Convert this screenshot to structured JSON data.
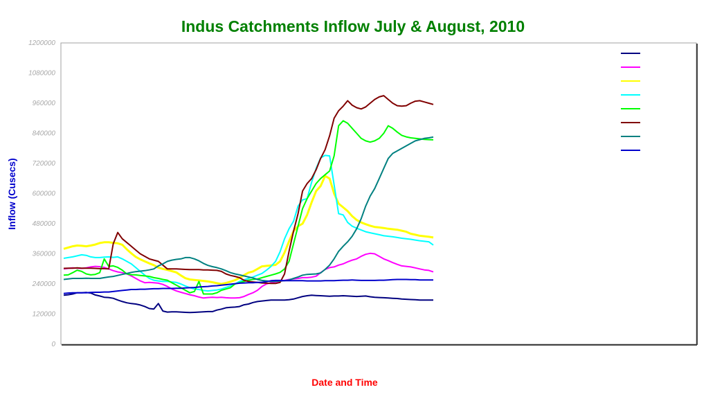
{
  "chart_data": {
    "type": "line",
    "title": "Indus Catchments Inflow July & August, 2010",
    "xlabel": "Date and Time",
    "ylabel": "Inflow (Cusecs)",
    "ylim": [
      0,
      1200000
    ],
    "yticks": [
      0,
      120000,
      240000,
      360000,
      480000,
      600000,
      720000,
      840000,
      960000,
      1080000,
      1200000
    ],
    "ytick_labels": [
      "0",
      "120000",
      "240000",
      "360000",
      "480000",
      "600000",
      "720000",
      "840000",
      "960000",
      "1080000",
      "1200000"
    ],
    "x_count": 83,
    "grid": false,
    "legend": "top-right",
    "series": [
      {
        "color": "#000080",
        "values": [
          195000,
          197000,
          200000,
          205000,
          205000,
          206000,
          204000,
          196000,
          192000,
          187000,
          186000,
          183000,
          176000,
          170000,
          165000,
          162000,
          160000,
          156000,
          150000,
          142000,
          140000,
          162000,
          132000,
          128000,
          129000,
          129000,
          128000,
          127000,
          126000,
          127000,
          128000,
          129000,
          130000,
          130000,
          136000,
          140000,
          145000,
          147000,
          148000,
          150000,
          157000,
          160000,
          166000,
          170000,
          172000,
          174000,
          176000,
          176000,
          176000,
          176000,
          177000,
          180000,
          185000,
          190000,
          193000,
          195000,
          194000,
          193000,
          192000,
          191000,
          192000,
          192000,
          193000,
          192000,
          191000,
          190000,
          191000,
          192000,
          189000,
          187000,
          186000,
          185000,
          184000,
          183000,
          182000,
          180000,
          179000,
          178000,
          177000,
          176000,
          176000,
          176000,
          176000
        ]
      },
      {
        "color": "#ff00ff",
        "values": [
          300000,
          302000,
          304000,
          303000,
          302000,
          304000,
          308000,
          310000,
          309000,
          306000,
          300000,
          293000,
          288000,
          285000,
          280000,
          272000,
          262000,
          252000,
          245000,
          246000,
          245000,
          243000,
          238000,
          230000,
          220000,
          212000,
          207000,
          202000,
          197000,
          193000,
          188000,
          184000,
          186000,
          187000,
          186000,
          187000,
          185000,
          184000,
          184000,
          185000,
          190000,
          198000,
          205000,
          215000,
          230000,
          240000,
          245000,
          248000,
          250000,
          254000,
          258000,
          260000,
          262000,
          265000,
          265000,
          267000,
          271000,
          285000,
          298000,
          305000,
          308000,
          315000,
          320000,
          328000,
          335000,
          340000,
          350000,
          358000,
          362000,
          360000,
          350000,
          340000,
          333000,
          325000,
          318000,
          312000,
          310000,
          308000,
          304000,
          300000,
          296000,
          294000,
          288000
        ]
      },
      {
        "color": "#ffff00",
        "values": [
          380000,
          385000,
          390000,
          393000,
          392000,
          390000,
          393000,
          397000,
          403000,
          406000,
          406000,
          404000,
          402000,
          396000,
          378000,
          362000,
          348000,
          338000,
          330000,
          322000,
          315000,
          305000,
          300000,
          296000,
          291000,
          286000,
          274000,
          263000,
          258000,
          256000,
          254000,
          252000,
          250000,
          247000,
          243000,
          240000,
          244000,
          249000,
          255000,
          264000,
          275000,
          285000,
          290000,
          300000,
          310000,
          312000,
          314000,
          316000,
          330000,
          365000,
          410000,
          450000,
          470000,
          480000,
          515000,
          565000,
          610000,
          630000,
          670000,
          660000,
          600000,
          560000,
          545000,
          530000,
          510000,
          495000,
          485000,
          478000,
          472000,
          467000,
          465000,
          463000,
          460000,
          458000,
          456000,
          452000,
          448000,
          440000,
          436000,
          432000,
          430000,
          428000,
          425000
        ]
      },
      {
        "color": "#00ffff",
        "values": [
          342000,
          345000,
          348000,
          352000,
          356000,
          354000,
          348000,
          345000,
          345000,
          347000,
          348000,
          346000,
          348000,
          340000,
          330000,
          320000,
          305000,
          290000,
          275000,
          262000,
          255000,
          252000,
          250000,
          250000,
          248000,
          246000,
          240000,
          232000,
          225000,
          220000,
          218000,
          214000,
          212000,
          214000,
          216000,
          220000,
          226000,
          232000,
          240000,
          250000,
          256000,
          262000,
          268000,
          275000,
          282000,
          295000,
          310000,
          330000,
          368000,
          420000,
          460000,
          490000,
          550000,
          575000,
          580000,
          645000,
          700000,
          742000,
          752000,
          750000,
          635000,
          520000,
          515000,
          485000,
          470000,
          462000,
          455000,
          448000,
          444000,
          440000,
          436000,
          432000,
          430000,
          428000,
          425000,
          422000,
          420000,
          418000,
          415000,
          412000,
          410000,
          408000,
          395000
        ]
      },
      {
        "color": "#00ff00",
        "values": [
          275000,
          276000,
          285000,
          295000,
          290000,
          280000,
          276000,
          278000,
          285000,
          340000,
          310000,
          312000,
          306000,
          295000,
          280000,
          277000,
          276000,
          274000,
          272000,
          270000,
          265000,
          262000,
          258000,
          255000,
          245000,
          235000,
          225000,
          215000,
          205000,
          210000,
          250000,
          200000,
          200000,
          200000,
          205000,
          215000,
          220000,
          225000,
          240000,
          245000,
          250000,
          255000,
          258000,
          260000,
          265000,
          270000,
          275000,
          280000,
          286000,
          300000,
          330000,
          400000,
          470000,
          540000,
          580000,
          610000,
          640000,
          660000,
          675000,
          690000,
          750000,
          870000,
          890000,
          880000,
          860000,
          840000,
          820000,
          810000,
          805000,
          810000,
          820000,
          840000,
          870000,
          860000,
          845000,
          832000,
          826000,
          822000,
          820000,
          818000,
          816000,
          815000,
          814000
        ]
      },
      {
        "color": "#800000",
        "values": [
          302000,
          303000,
          303000,
          304000,
          303000,
          303000,
          303000,
          302000,
          301000,
          301000,
          300000,
          400000,
          445000,
          420000,
          405000,
          390000,
          375000,
          360000,
          350000,
          340000,
          335000,
          330000,
          315000,
          300000,
          300000,
          300000,
          299000,
          298000,
          297000,
          297000,
          297000,
          296000,
          296000,
          295000,
          294000,
          290000,
          280000,
          274000,
          270000,
          265000,
          255000,
          250000,
          248000,
          246000,
          244000,
          243000,
          242000,
          242000,
          246000,
          280000,
          370000,
          450000,
          520000,
          610000,
          640000,
          660000,
          695000,
          740000,
          775000,
          830000,
          900000,
          930000,
          948000,
          970000,
          952000,
          942000,
          937000,
          945000,
          960000,
          975000,
          985000,
          990000,
          975000,
          960000,
          950000,
          948000,
          950000,
          960000,
          968000,
          970000,
          965000,
          960000,
          955000
        ]
      },
      {
        "color": "#008080",
        "values": [
          258000,
          260000,
          262000,
          262000,
          262000,
          263000,
          262000,
          262000,
          262000,
          265000,
          268000,
          270000,
          274000,
          278000,
          282000,
          286000,
          289000,
          291000,
          293000,
          296000,
          300000,
          312000,
          320000,
          330000,
          335000,
          338000,
          340000,
          345000,
          345000,
          340000,
          332000,
          322000,
          314000,
          309000,
          305000,
          300000,
          293000,
          285000,
          280000,
          276000,
          272000,
          268000,
          264000,
          258000,
          254000,
          252000,
          250000,
          250000,
          252000,
          253000,
          256000,
          262000,
          268000,
          275000,
          278000,
          279000,
          280000,
          284000,
          298000,
          315000,
          340000,
          370000,
          390000,
          408000,
          430000,
          460000,
          500000,
          550000,
          590000,
          620000,
          660000,
          700000,
          740000,
          760000,
          770000,
          780000,
          790000,
          800000,
          810000,
          815000,
          820000,
          822000,
          825000
        ]
      },
      {
        "color": "#0000cc",
        "values": [
          202000,
          204000,
          205000,
          205000,
          205000,
          205000,
          206000,
          207000,
          207000,
          208000,
          208000,
          210000,
          212000,
          214000,
          216000,
          218000,
          218000,
          219000,
          219000,
          220000,
          221000,
          221000,
          222000,
          222000,
          222000,
          223000,
          223000,
          224000,
          225000,
          226000,
          228000,
          229000,
          230000,
          232000,
          233000,
          235000,
          237000,
          239000,
          241000,
          243000,
          244000,
          245000,
          245000,
          246000,
          247000,
          249000,
          253000,
          254000,
          254000,
          253000,
          253000,
          253000,
          253000,
          253000,
          252000,
          252000,
          252000,
          252000,
          253000,
          253000,
          253000,
          254000,
          255000,
          255000,
          256000,
          255000,
          254000,
          254000,
          254000,
          254000,
          255000,
          255000,
          256000,
          257000,
          258000,
          258000,
          258000,
          257000,
          257000,
          256000,
          256000,
          256000,
          256000
        ]
      }
    ]
  }
}
